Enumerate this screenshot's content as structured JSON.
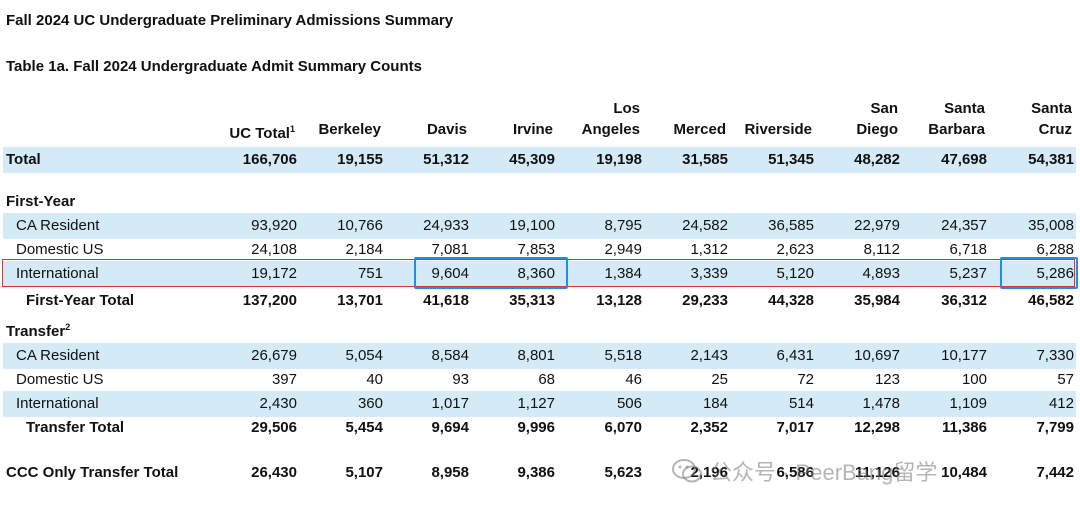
{
  "title": "Fall 2024 UC Undergraduate Preliminary Admissions Summary",
  "subtitle": "Table 1a. Fall 2024 Undergraduate Admit Summary Counts",
  "columns": [
    {
      "line1": "",
      "line2": "UC Total",
      "sup": "1"
    },
    {
      "line1": "",
      "line2": "Berkeley",
      "sup": ""
    },
    {
      "line1": "",
      "line2": "Davis",
      "sup": ""
    },
    {
      "line1": "",
      "line2": "Irvine",
      "sup": ""
    },
    {
      "line1": "Los",
      "line2": "Angeles",
      "sup": ""
    },
    {
      "line1": "",
      "line2": "Merced",
      "sup": ""
    },
    {
      "line1": "",
      "line2": "Riverside",
      "sup": ""
    },
    {
      "line1": "San",
      "line2": "Diego",
      "sup": ""
    },
    {
      "line1": "Santa",
      "line2": "Barbara",
      "sup": ""
    },
    {
      "line1": "Santa",
      "line2": "Cruz",
      "sup": ""
    }
  ],
  "total": {
    "label": "Total",
    "values": [
      "166,706",
      "19,155",
      "51,312",
      "45,309",
      "19,198",
      "31,585",
      "51,345",
      "48,282",
      "47,698",
      "54,381"
    ]
  },
  "first_year": {
    "heading": "First-Year",
    "rows": [
      {
        "label": "CA Resident",
        "values": [
          "93,920",
          "10,766",
          "24,933",
          "19,100",
          "8,795",
          "24,582",
          "36,585",
          "22,979",
          "24,357",
          "35,008"
        ]
      },
      {
        "label": "Domestic US",
        "values": [
          "24,108",
          "2,184",
          "7,081",
          "7,853",
          "2,949",
          "1,312",
          "2,623",
          "8,112",
          "6,718",
          "6,288"
        ]
      },
      {
        "label": "International",
        "values": [
          "19,172",
          "751",
          "9,604",
          "8,360",
          "1,384",
          "3,339",
          "5,120",
          "4,893",
          "5,237",
          "5,286"
        ]
      }
    ],
    "total": {
      "label": "First-Year Total",
      "values": [
        "137,200",
        "13,701",
        "41,618",
        "35,313",
        "13,128",
        "29,233",
        "44,328",
        "35,984",
        "36,312",
        "46,582"
      ]
    }
  },
  "transfer": {
    "heading": "Transfer",
    "heading_sup": "2",
    "rows": [
      {
        "label": "CA Resident",
        "values": [
          "26,679",
          "5,054",
          "8,584",
          "8,801",
          "5,518",
          "2,143",
          "6,431",
          "10,697",
          "10,177",
          "7,330"
        ]
      },
      {
        "label": "Domestic US",
        "values": [
          "397",
          "40",
          "93",
          "68",
          "46",
          "25",
          "72",
          "123",
          "100",
          "57"
        ]
      },
      {
        "label": "International",
        "values": [
          "2,430",
          "360",
          "1,017",
          "1,127",
          "506",
          "184",
          "514",
          "1,478",
          "1,109",
          "412"
        ]
      }
    ],
    "total": {
      "label": "Transfer Total",
      "values": [
        "29,506",
        "5,454",
        "9,694",
        "9,996",
        "6,070",
        "2,352",
        "7,017",
        "12,298",
        "11,386",
        "7,799"
      ]
    }
  },
  "ccc": {
    "label": "CCC Only Transfer Total",
    "values": [
      "26,430",
      "5,107",
      "8,958",
      "9,386",
      "5,623",
      "2,196",
      "6,586",
      "11,126",
      "10,484",
      "7,442"
    ]
  },
  "watermark": {
    "text": "公众号 · PeerBang留学",
    "icon": "wechat-icon"
  },
  "colors": {
    "band": "#d4ebf7",
    "highlight_row": "#e03030",
    "highlight_cell": "#1e8fe8"
  }
}
